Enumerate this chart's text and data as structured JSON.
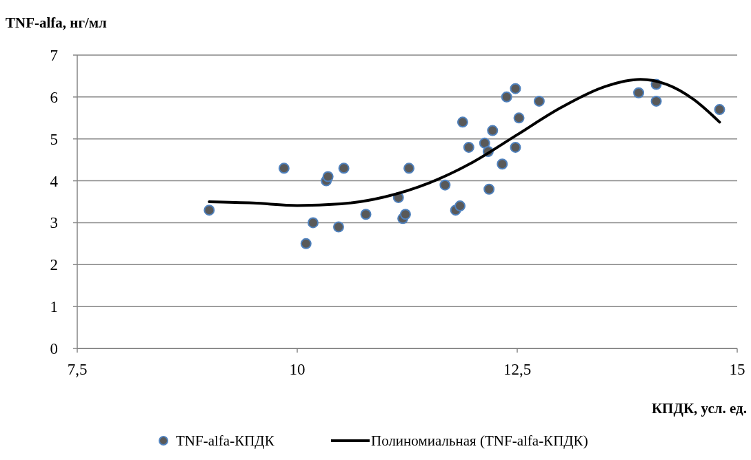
{
  "chart_data": {
    "type": "scatter",
    "xlabel": "КПДК, усл. ед.",
    "ylabel": "TNF-alfa, нг/мл",
    "xlim": [
      7.5,
      15
    ],
    "xticks": [
      {
        "value": 7.5,
        "label": "7,5"
      },
      10,
      {
        "value": 12.5,
        "label": "12,5"
      },
      15
    ],
    "ylim": [
      0,
      7
    ],
    "yticks": [
      0,
      1,
      2,
      3,
      4,
      5,
      6,
      7
    ],
    "grid": "y",
    "legend": "bottom",
    "marker": "circle",
    "series": [
      {
        "name": "TNF-alfa-КПДК",
        "color": "#595959",
        "x": [
          9.0,
          9.85,
          10.1,
          10.18,
          10.33,
          10.35,
          10.47,
          10.53,
          10.78,
          11.15,
          11.2,
          11.23,
          11.27,
          11.68,
          11.8,
          11.85,
          11.88,
          11.95,
          12.13,
          12.17,
          12.18,
          12.22,
          12.33,
          12.38,
          12.48,
          12.48,
          12.52,
          12.75,
          13.88,
          14.08,
          14.08,
          14.8
        ],
        "values": [
          3.3,
          4.3,
          2.5,
          3.0,
          4.0,
          4.1,
          2.9,
          4.3,
          3.2,
          3.6,
          3.1,
          3.2,
          4.3,
          3.9,
          3.3,
          3.4,
          5.4,
          4.8,
          4.9,
          4.7,
          3.8,
          5.2,
          4.4,
          6.0,
          6.2,
          4.8,
          5.5,
          5.9,
          6.1,
          6.3,
          5.9,
          5.7
        ]
      },
      {
        "name": "Полиномиальная (TNF-alfa-КПДК)",
        "type": "line",
        "color": "#000000",
        "marker": "none",
        "x": [
          9.0,
          9.5,
          10.0,
          10.5,
          11.0,
          11.5,
          12.0,
          12.5,
          13.0,
          13.5,
          13.9,
          14.2,
          14.5,
          14.8
        ],
        "values": [
          3.5,
          3.47,
          3.41,
          3.45,
          3.62,
          3.95,
          4.45,
          5.1,
          5.75,
          6.25,
          6.42,
          6.3,
          5.95,
          5.4
        ]
      }
    ]
  }
}
